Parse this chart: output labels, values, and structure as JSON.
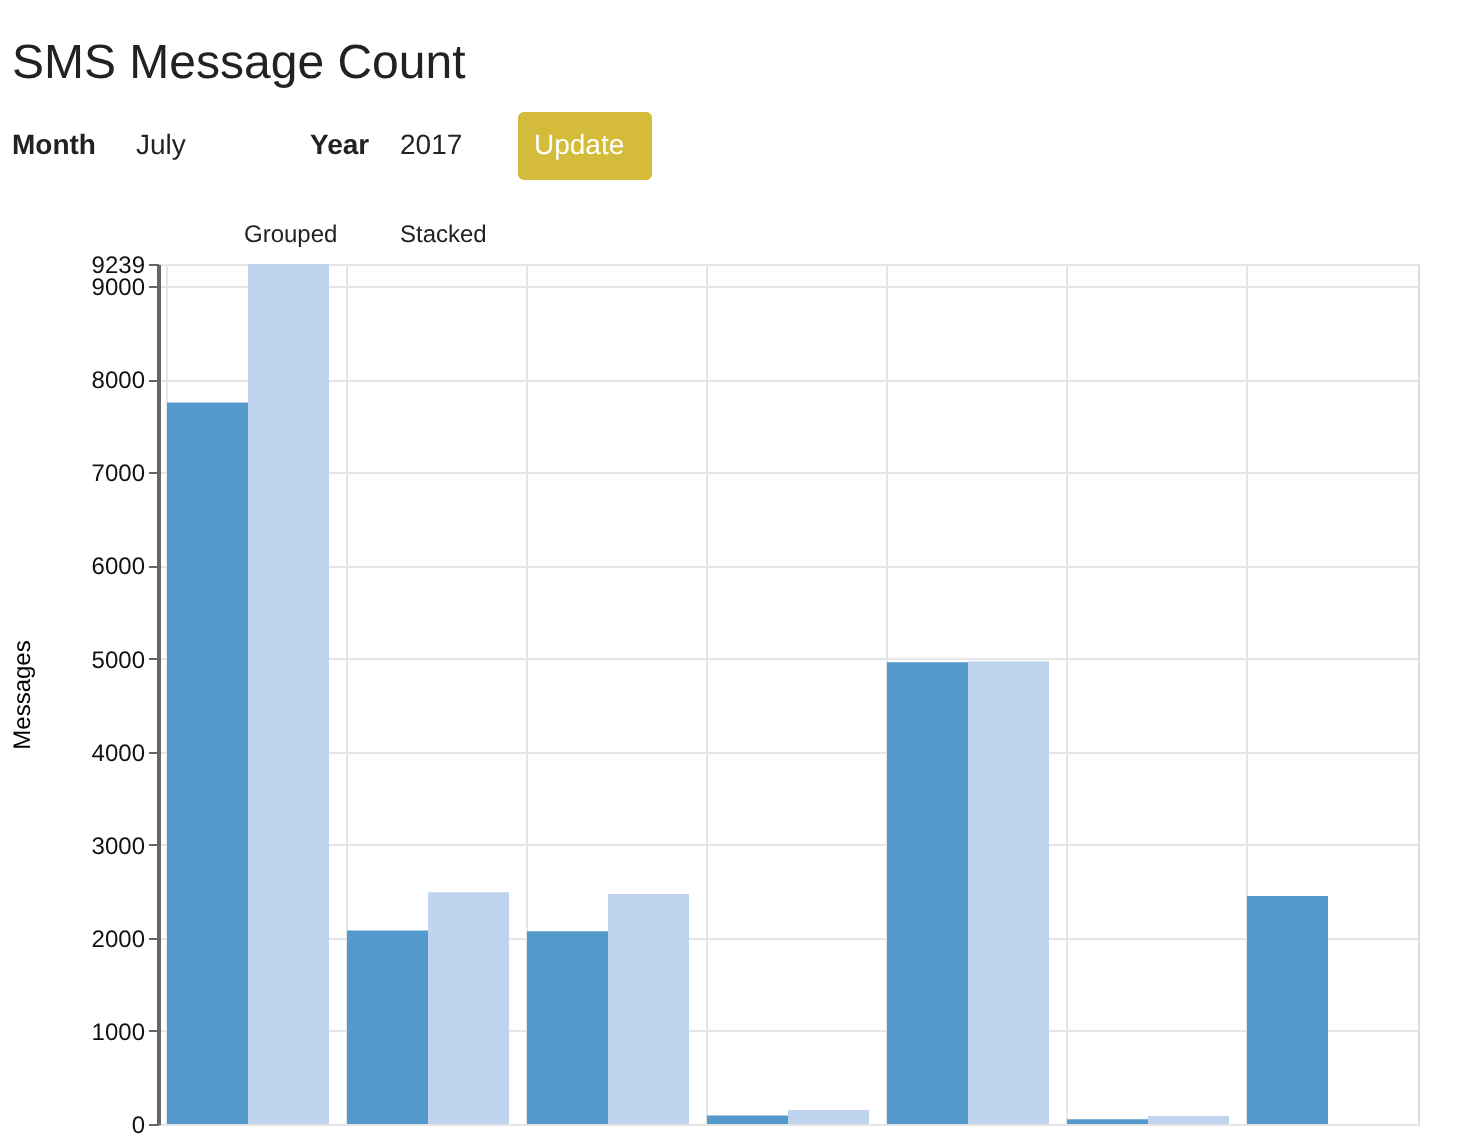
{
  "chart_data": {
    "type": "bar",
    "title": "SMS Message Count",
    "ylabel": "Messages",
    "categories": [
      null,
      null,
      null,
      null,
      null,
      null,
      null
    ],
    "series": [
      {
        "color": "#5499cc",
        "values": [
          7750,
          2080,
          2070,
          90,
          4960,
          50,
          2450
        ]
      },
      {
        "color": "#c0d4ef",
        "values": [
          9239,
          2490,
          2470,
          150,
          4970,
          85,
          null
        ]
      }
    ],
    "ylim": [
      0,
      9239
    ],
    "yticks": [
      0,
      1000,
      2000,
      3000,
      4000,
      5000,
      6000,
      7000,
      8000,
      9000,
      9239
    ],
    "grid": true,
    "legend": false,
    "annotations": [
      "Month",
      "July",
      "Year",
      "2017",
      "Update",
      "Grouped",
      "Stacked"
    ]
  }
}
